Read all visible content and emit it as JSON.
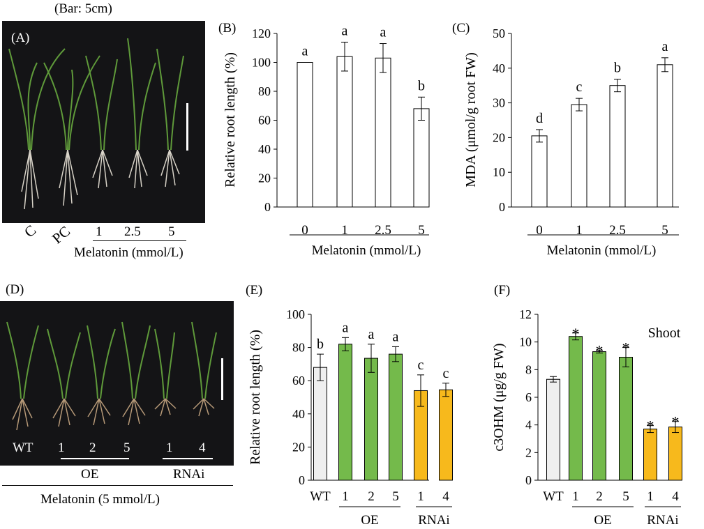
{
  "panel_a": {
    "bar_note": "(Bar: 5cm)",
    "label": "(A)",
    "control_labels": [
      "C",
      "PC"
    ],
    "melatonin_labels": [
      "1",
      "2.5",
      "5"
    ],
    "axis_label": "Melatonin (mmol/L)"
  },
  "panel_d": {
    "label": "(D)",
    "lane_labels": [
      "WT",
      "1",
      "2",
      "5",
      "1",
      "4"
    ],
    "group_oe": "OE",
    "group_rnai": "RNAi",
    "treatment": "Melatonin (5 mmol/L)"
  },
  "colors": {
    "white": "#ffffff",
    "wt": "#efefef",
    "oe": "#74ba4b",
    "rnai": "#f7b91c",
    "photo_bg": "#141416"
  },
  "chart_data": [
    {
      "type": "bar",
      "panel": "(B)",
      "categories": [
        "0",
        "1",
        "2.5",
        "5"
      ],
      "values": [
        100,
        104,
        103,
        68
      ],
      "errors": [
        0,
        10,
        10,
        8
      ],
      "letters": [
        "a",
        "a",
        "a",
        "b"
      ],
      "bar_colors": [
        "#ffffff",
        "#ffffff",
        "#ffffff",
        "#ffffff"
      ],
      "ylabel": "Relative root length (%)",
      "xlabel": "Melatonin (mmol/L)",
      "ylim": [
        0,
        120
      ],
      "yticks": [
        "0",
        "20",
        "40",
        "60",
        "80",
        "100",
        "120"
      ],
      "groups": []
    },
    {
      "type": "bar",
      "panel": "(C)",
      "categories": [
        "0",
        "1",
        "2.5",
        "5"
      ],
      "values": [
        20.5,
        29.5,
        35,
        41
      ],
      "errors": [
        1.8,
        1.8,
        1.8,
        2
      ],
      "letters": [
        "d",
        "c",
        "b",
        "a"
      ],
      "bar_colors": [
        "#ffffff",
        "#ffffff",
        "#ffffff",
        "#ffffff"
      ],
      "ylabel": "MDA (μmol/g root FW)",
      "xlabel": "Melatonin (mmol/L)",
      "ylim": [
        0,
        50
      ],
      "yticks": [
        "0",
        "10",
        "20",
        "30",
        "40",
        "50"
      ],
      "groups": []
    },
    {
      "type": "bar",
      "panel": "(E)",
      "categories": [
        "WT",
        "1",
        "2",
        "5",
        "1",
        "4"
      ],
      "values": [
        68,
        82,
        73.5,
        76,
        54,
        54.5
      ],
      "errors": [
        8,
        4,
        8.5,
        4.5,
        9.5,
        4
      ],
      "letters": [
        "b",
        "a",
        "a",
        "a",
        "c",
        "c"
      ],
      "bar_colors": [
        "#efefef",
        "#74ba4b",
        "#74ba4b",
        "#74ba4b",
        "#f7b91c",
        "#f7b91c"
      ],
      "ylabel": "Relative root length (%)",
      "xlabel": "",
      "ylim": [
        0,
        100
      ],
      "yticks": [
        "0",
        "20",
        "40",
        "60",
        "80",
        "100"
      ],
      "groups": [
        {
          "label": "OE",
          "from": 1,
          "to": 3
        },
        {
          "label": "RNAi",
          "from": 4,
          "to": 5
        }
      ]
    },
    {
      "type": "bar",
      "panel": "(F)",
      "title": "Shoot",
      "categories": [
        "WT",
        "1",
        "2",
        "5",
        "1",
        "4"
      ],
      "values": [
        7.3,
        10.4,
        9.3,
        8.9,
        3.7,
        3.85
      ],
      "errors": [
        0.2,
        0.25,
        0.1,
        0.7,
        0.25,
        0.4
      ],
      "letters": [
        "",
        "*",
        "*",
        "*",
        "*",
        "*"
      ],
      "bar_colors": [
        "#efefef",
        "#74ba4b",
        "#74ba4b",
        "#74ba4b",
        "#f7b91c",
        "#f7b91c"
      ],
      "ylabel": "c3OHM (μg/g FW)",
      "xlabel": "",
      "ylim": [
        0,
        12
      ],
      "yticks": [
        "0",
        "2",
        "4",
        "6",
        "8",
        "10",
        "12"
      ],
      "groups": [
        {
          "label": "OE",
          "from": 1,
          "to": 3
        },
        {
          "label": "RNAi",
          "from": 4,
          "to": 5
        }
      ]
    }
  ]
}
